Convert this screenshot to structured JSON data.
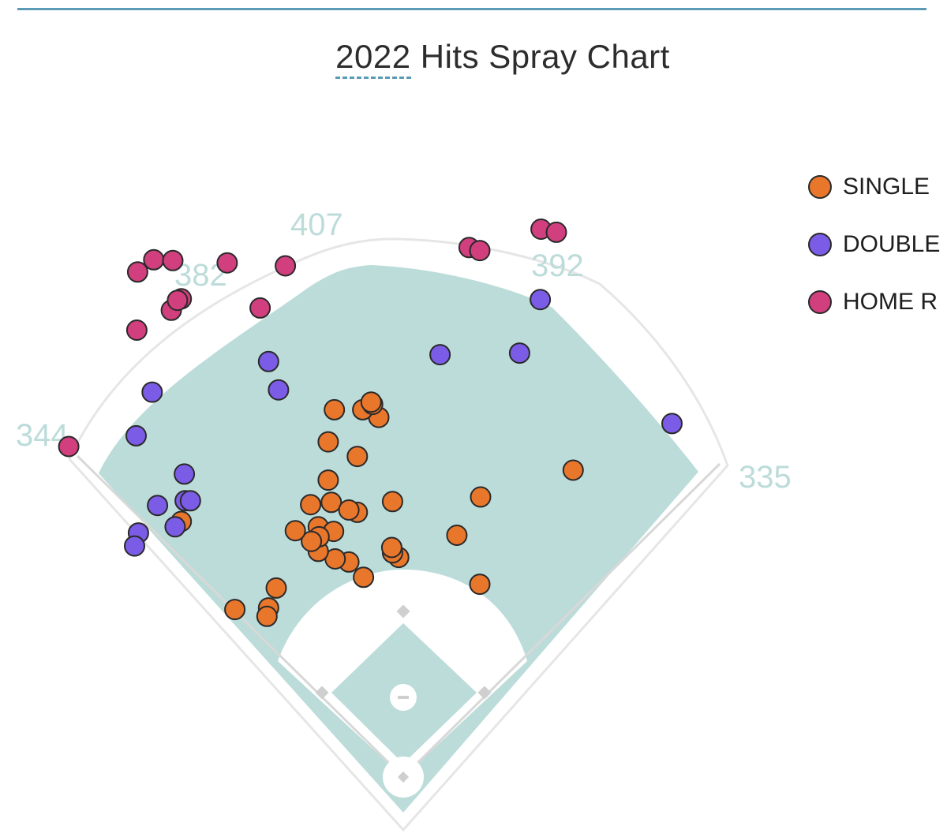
{
  "title_year": "2022",
  "title_rest": " Hits Spray Chart",
  "colors": {
    "single": "#e8762b",
    "double": "#7b5ce6",
    "home_run": "#d13f7e",
    "field": "#bcdcda"
  },
  "distances": {
    "left_line": "344",
    "left_center": "382",
    "center": "407",
    "right_center": "392",
    "right_line": "335"
  },
  "legend": [
    {
      "key": "single",
      "label": "SINGLE"
    },
    {
      "key": "double",
      "label": "DOUBLE"
    },
    {
      "key": "home_run",
      "label": "HOME R"
    }
  ],
  "chart_data": {
    "type": "scatter",
    "title": "2022 Hits Spray Chart",
    "series": [
      {
        "name": "SINGLE",
        "points": [
          [
            -98,
            388
          ],
          [
            -94,
            359
          ],
          [
            -60,
            346
          ],
          [
            -290,
            334
          ],
          [
            -166,
            247
          ],
          [
            -176,
            221
          ],
          [
            -178,
            210
          ],
          [
            -220,
            219
          ],
          [
            -71,
            281
          ],
          [
            -52,
            261
          ],
          [
            -6,
            287
          ],
          [
            -98,
            438
          ],
          [
            -60,
            419
          ],
          [
            -32,
            470
          ],
          [
            -90,
            480
          ],
          [
            -53,
            480
          ],
          [
            -40,
            487
          ],
          [
            -42,
            490
          ],
          [
            -14,
            293
          ],
          [
            -71,
            349
          ],
          [
            -111,
            327
          ],
          [
            -121,
            356
          ],
          [
            -91,
            321
          ],
          [
            -89,
            285
          ],
          [
            -111,
            295
          ],
          [
            -110,
            314
          ],
          [
            -120,
            308
          ],
          [
            -141,
            322
          ],
          [
            101,
            366
          ],
          [
            70,
            316
          ],
          [
            100,
            252
          ],
          [
            222,
            401
          ],
          [
            -14,
            360
          ],
          [
            -15,
            300
          ]
        ]
      },
      {
        "name": "DOUBLE",
        "points": [
          [
            -346,
            319
          ],
          [
            -351,
            302
          ],
          [
            -298,
            327
          ],
          [
            -285,
            361
          ],
          [
            -321,
            355
          ],
          [
            -286,
            396
          ],
          [
            -278,
            361
          ],
          [
            -176,
            543
          ],
          [
            -163,
            506
          ],
          [
            -328,
            503
          ],
          [
            -349,
            446
          ],
          [
            48,
            552
          ],
          [
            152,
            554
          ],
          [
            179,
            624
          ],
          [
            351,
            462
          ]
        ]
      },
      {
        "name": "HOME RUN",
        "points": [
          [
            -437,
            432
          ],
          [
            -348,
            584
          ],
          [
            -326,
            676
          ],
          [
            -301,
            675
          ],
          [
            -290,
            625
          ],
          [
            -230,
            672
          ],
          [
            -187,
            613
          ],
          [
            -347,
            660
          ],
          [
            -303,
            610
          ],
          [
            -295,
            623
          ],
          [
            -154,
            668
          ],
          [
            86,
            692
          ],
          [
            100,
            688
          ],
          [
            180,
            716
          ],
          [
            200,
            712
          ]
        ]
      }
    ],
    "distance_labels": [
      "344",
      "382",
      "407",
      "392",
      "335"
    ]
  }
}
